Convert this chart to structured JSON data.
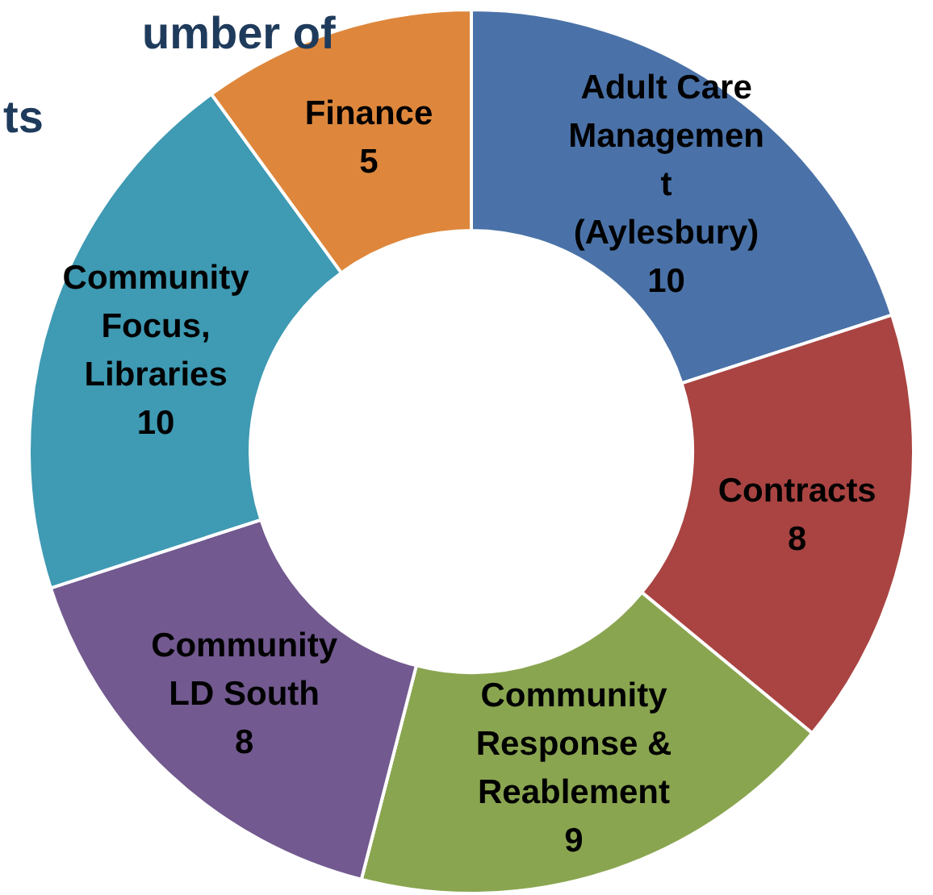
{
  "chart_data": {
    "type": "donut",
    "title": "umber of\nts",
    "categories": [
      "Adult Care\nManagemen\nt\n(Aylesbury)",
      "Contracts",
      "Community\nResponse &\nReablement",
      "Community\nLD South",
      "Community\nFocus,\nLibraries",
      "Finance"
    ],
    "values": [
      10,
      8,
      9,
      8,
      10,
      5
    ],
    "colors": [
      "#4a72a8",
      "#a94442",
      "#8aa550",
      "#72598f",
      "#3f9ab3",
      "#de873c"
    ],
    "data_labels": true
  }
}
